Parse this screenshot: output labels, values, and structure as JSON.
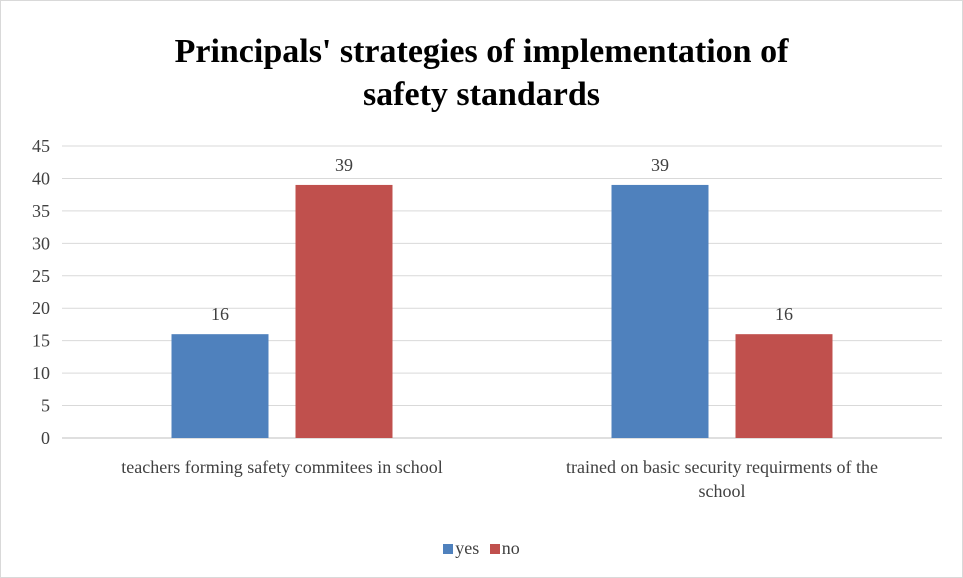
{
  "chart_data": {
    "type": "bar",
    "title_lines": [
      "Principals' strategies of implementation of",
      "safety standards"
    ],
    "categories": [
      [
        "teachers forming safety commitees in school"
      ],
      [
        "trained on basic security requirments of the",
        "school"
      ]
    ],
    "series": [
      {
        "name": "yes",
        "color": "#4f81bd",
        "values": [
          16,
          39
        ]
      },
      {
        "name": "no",
        "color": "#c0504d",
        "values": [
          39,
          16
        ]
      }
    ],
    "ylim": [
      0,
      45
    ],
    "yticks": [
      0,
      5,
      10,
      15,
      20,
      25,
      30,
      35,
      40,
      45
    ],
    "data_labels": true,
    "gridlines": true,
    "legend_position": "bottom"
  }
}
